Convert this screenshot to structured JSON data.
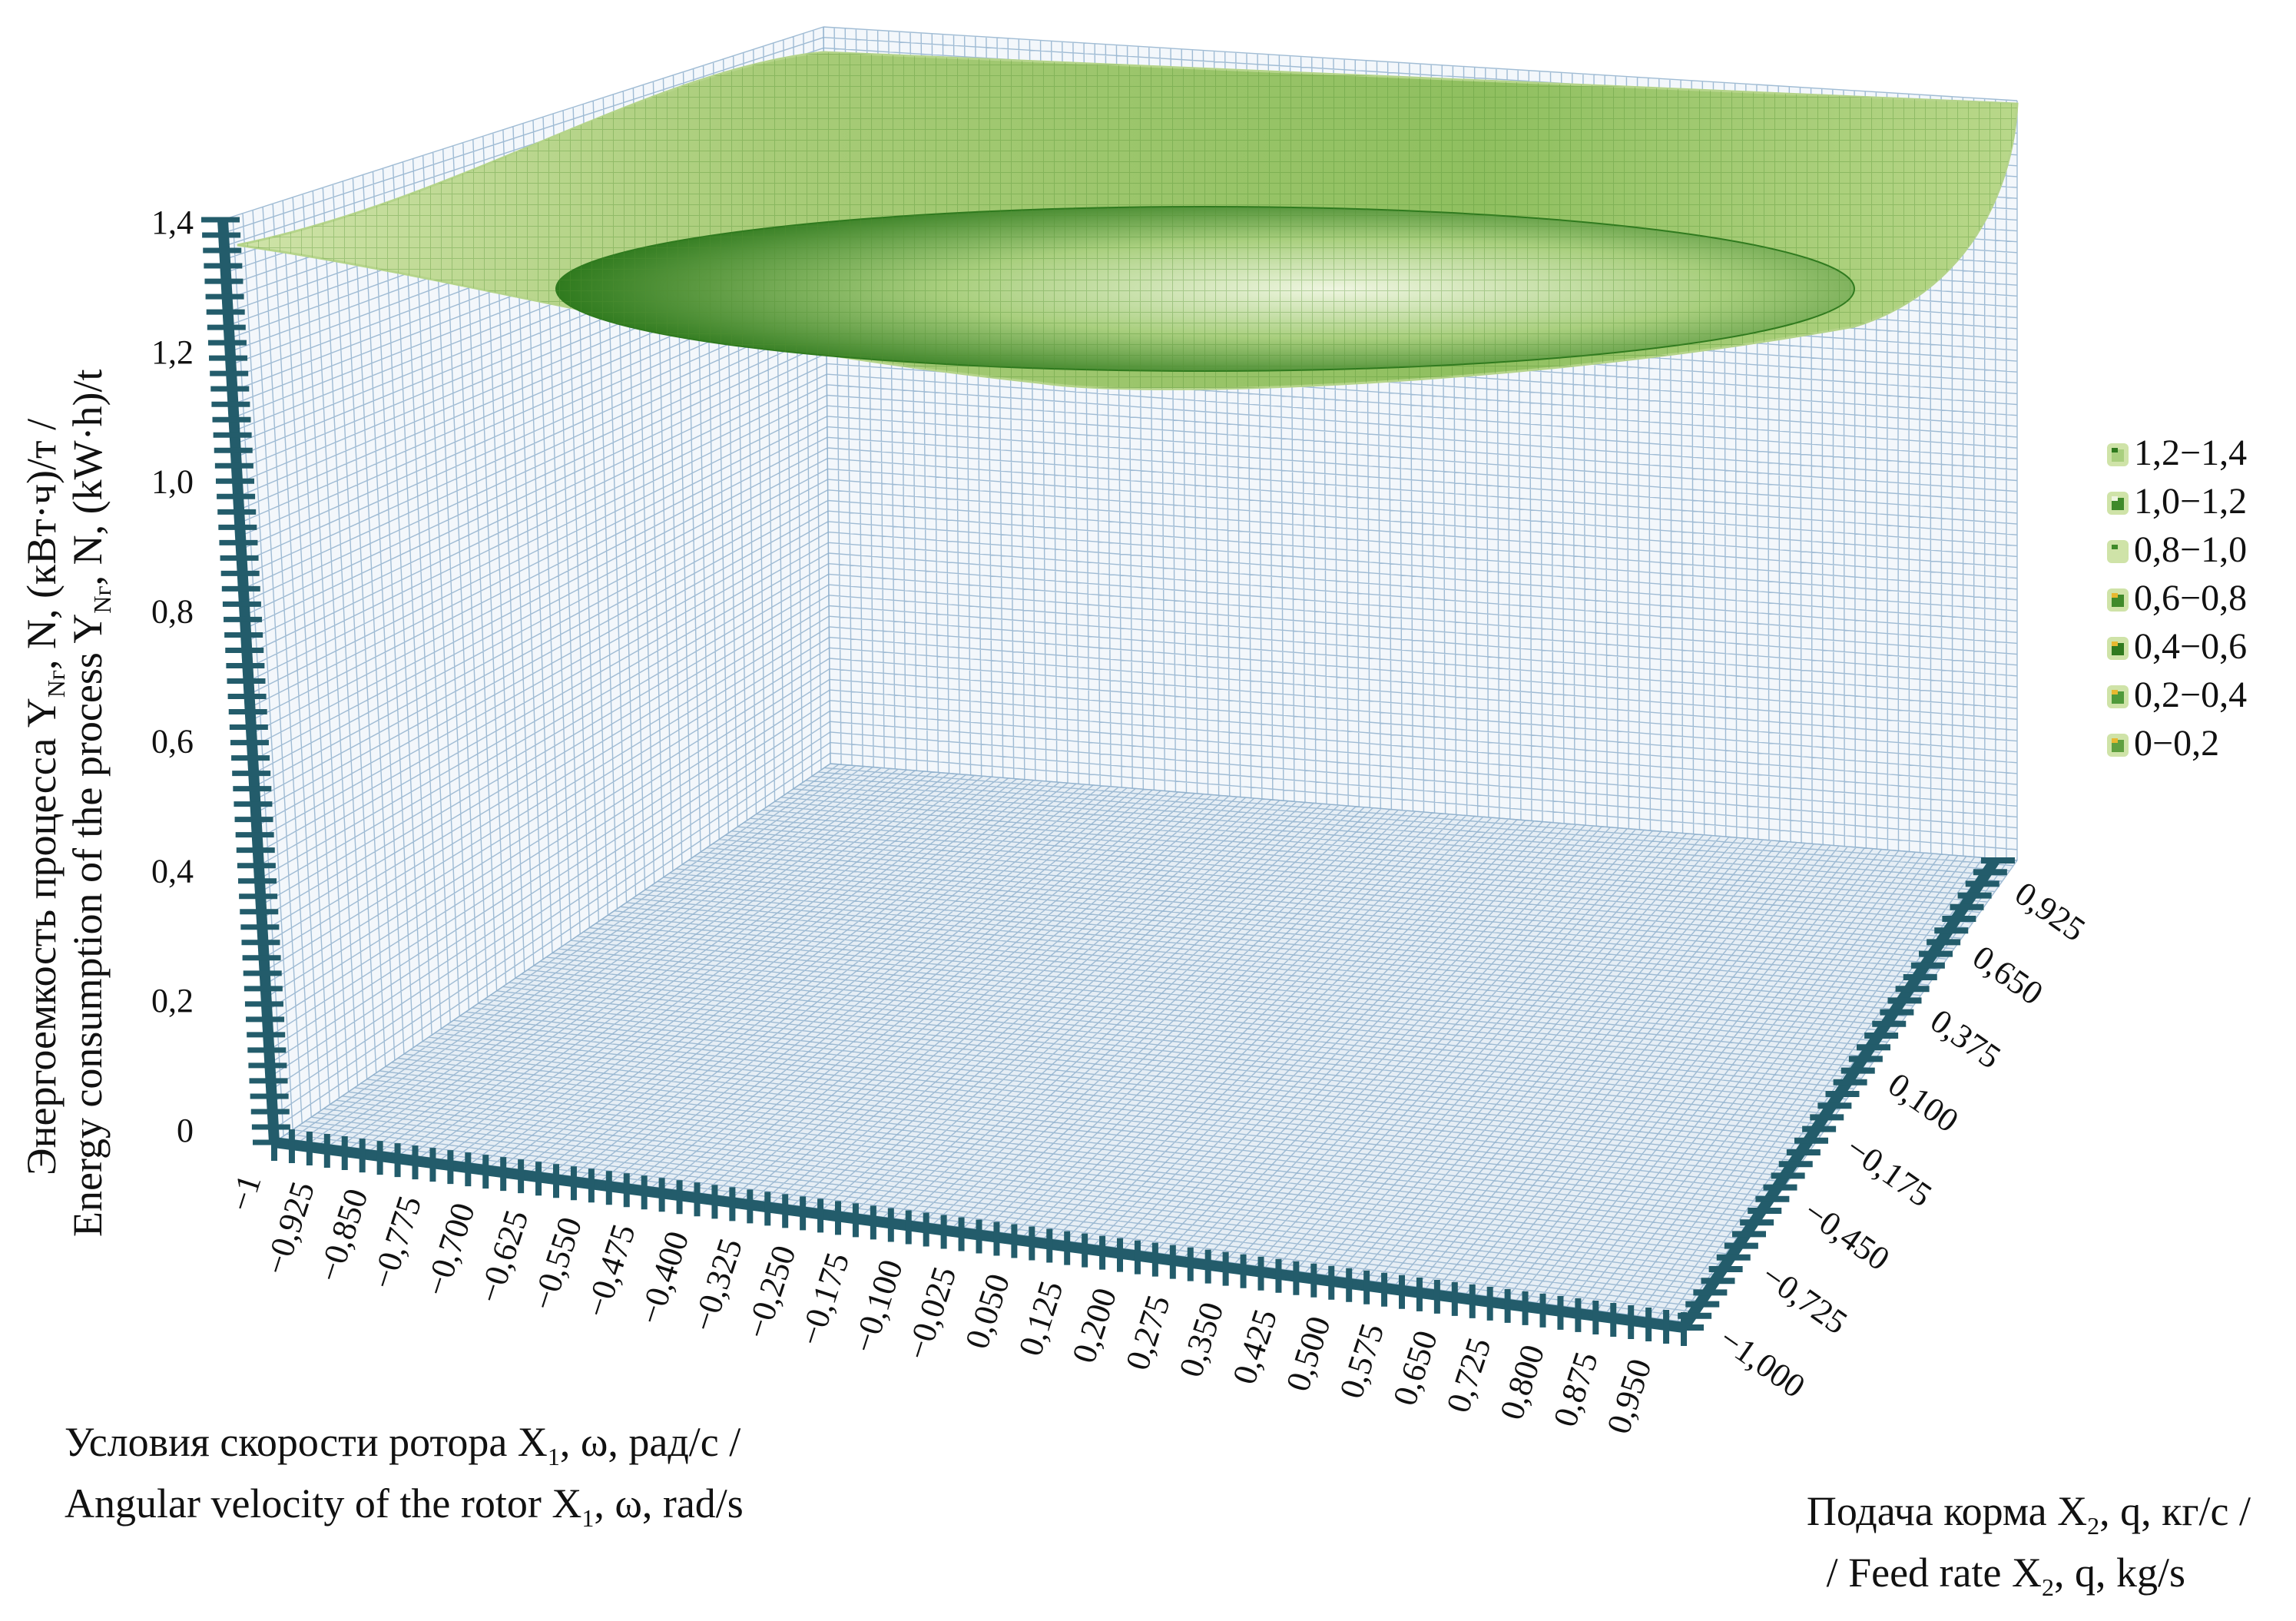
{
  "chart_data": {
    "type": "surface",
    "title": "",
    "xlabel": {
      "ru_pre": "Условия скорости ротора X",
      "ru_sub": "1",
      "ru_post": ", ω, рад/с /",
      "en_pre": "Angular velocity of the rotor X",
      "en_sub": "1",
      "en_post": ", ω, rad/s"
    },
    "ylabel": {
      "ru_pre": "Подача корма X",
      "ru_sub": "2",
      "ru_post": ", q, кг/с /",
      "en_pre": "/ Feed rate X",
      "en_sub": "2",
      "en_post": ", q, kg/s"
    },
    "zlabel": {
      "ru_pre": "Энергоемкость процесса Y",
      "ru_sub": "Nг",
      "ru_post": ", N, (кВт·ч)/т /",
      "en_pre": "Energy consumption of the process Y",
      "en_sub": "Nг",
      "en_post": ", N, (kW·h)/t"
    },
    "x_ticks": [
      "−1",
      "−0,925",
      "−0,850",
      "−0,775",
      "−0,700",
      "−0,625",
      "−0,550",
      "−0,475",
      "−0,400",
      "−0,325",
      "−0,250",
      "−0,175",
      "−0,100",
      "−0,025",
      "0,050",
      "0,125",
      "0,200",
      "0,275",
      "0,350",
      "0,425",
      "0,500",
      "0,575",
      "0,650",
      "0,725",
      "0,800",
      "0,875",
      "0,950"
    ],
    "y_ticks": [
      "−1,000",
      "−0,725",
      "−0,450",
      "−0,175",
      "0,100",
      "0,375",
      "0,650",
      "0,925"
    ],
    "z_ticks": [
      "0",
      "0,2",
      "0,4",
      "0,6",
      "0,8",
      "1,0",
      "1,2",
      "1,4"
    ],
    "xlim": [
      -1,
      1
    ],
    "ylim": [
      -1,
      1
    ],
    "zlim": [
      0,
      1.4
    ],
    "surface_estimate": {
      "min_z": 1.2,
      "max_z": 1.4,
      "corner_z_x1_min_x2_min": 1.37
    },
    "legend": {
      "placement": "right",
      "entries": [
        "1,2−1,4",
        "1,0−1,2",
        "0,8−1,0",
        "0,6−0,8",
        "0,4−0,6",
        "0,2−0,4",
        "0−0,2"
      ]
    },
    "colors": {
      "axis": "#235c6b",
      "grid": "#8fb0cc",
      "surface_light": "#cfe3a8",
      "surface_dark": "#2f7a1e"
    }
  }
}
